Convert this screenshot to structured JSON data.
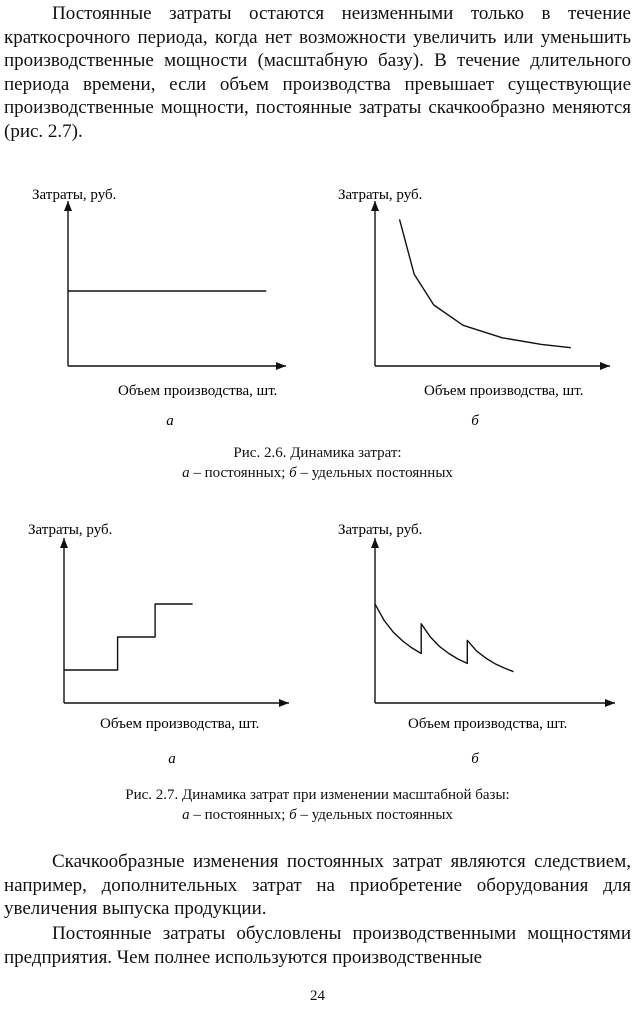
{
  "page": {
    "paragraph_1": "Постоянные затраты остаются неизменными только в течение краткосрочного периода, когда нет возможности увеличить или уменьшить производственные мощности (масштабную базу). В течение длительного периода времени, если объем производства превышает существующие производственные мощности, постоянные затраты скачкообразно меняются (рис. 2.7).",
    "paragraph_2": "Скачкообразные изменения постоянных затрат являются следствием, например, дополнительных затрат на приобретение оборудования для увеличения выпуска продукции.",
    "paragraph_3": "Постоянные затраты обусловлены производственными мощностями предприятия. Чем полнее используются производственные",
    "page_number": "24"
  },
  "figure_2_6": {
    "caption_line1": "Рис. 2.6. Динамика затрат:",
    "caption_a": "а",
    "caption_a_text": " – постоянных; ",
    "caption_b": "б",
    "caption_b_text": " – удельных постоянных"
  },
  "figure_2_7": {
    "caption_line1": "Рис. 2.7. Динамика затрат при изменении масштабной базы:",
    "caption_a": "а",
    "caption_a_text": " – постоянных; ",
    "caption_b": "б",
    "caption_b_text": " – удельных постоянных"
  },
  "chart_data": [
    {
      "figure": "2.6",
      "panel": "а",
      "type": "line",
      "ylabel": "Затраты, руб.",
      "xlabel": "Объем производства, шт.",
      "series": [
        {
          "x": [
            0,
            1
          ],
          "values": [
            1,
            1
          ]
        }
      ],
      "xlim": [
        0,
        1.1
      ],
      "ylim": [
        0,
        2.2
      ],
      "grid": false
    },
    {
      "figure": "2.6",
      "panel": "б",
      "type": "line",
      "ylabel": "Затраты, руб.",
      "xlabel": "Объем производства, шт.",
      "series": [
        {
          "x": [
            0.125,
            0.2,
            0.3,
            0.45,
            0.65,
            0.85,
            1
          ],
          "values": [
            8,
            5,
            3.33,
            2.22,
            1.54,
            1.18,
            1
          ]
        }
      ],
      "xlim": [
        0,
        1.2
      ],
      "ylim": [
        0,
        9
      ],
      "grid": false
    },
    {
      "figure": "2.7",
      "panel": "а",
      "type": "line",
      "ylabel": "Затраты, руб.",
      "xlabel": "Объем производства, шт.",
      "series": [
        {
          "x": [
            0,
            1,
            1,
            1.7,
            1.7,
            2.4
          ],
          "values": [
            1,
            1,
            2,
            2,
            3,
            3
          ]
        }
      ],
      "xlim": [
        0,
        4.2
      ],
      "ylim": [
        0,
        5
      ],
      "grid": false
    },
    {
      "figure": "2.7",
      "panel": "б",
      "type": "line",
      "ylabel": "Затраты, руб.",
      "xlabel": "Объем производства, шт.",
      "series": [
        {
          "x": [
            0,
            0.2,
            0.4,
            0.6,
            0.8,
            1,
            1,
            1.2,
            1.4,
            1.6,
            1.8,
            2,
            2,
            2.2,
            2.4,
            2.6,
            2.8,
            3
          ],
          "values": [
            3,
            2.5,
            2.14,
            1.88,
            1.67,
            1.5,
            2.4,
            2.0,
            1.71,
            1.5,
            1.33,
            1.2,
            1.9,
            1.58,
            1.36,
            1.19,
            1.06,
            0.95
          ]
        }
      ],
      "xlim": [
        0,
        5.2
      ],
      "ylim": [
        0,
        5
      ],
      "grid": false
    }
  ]
}
